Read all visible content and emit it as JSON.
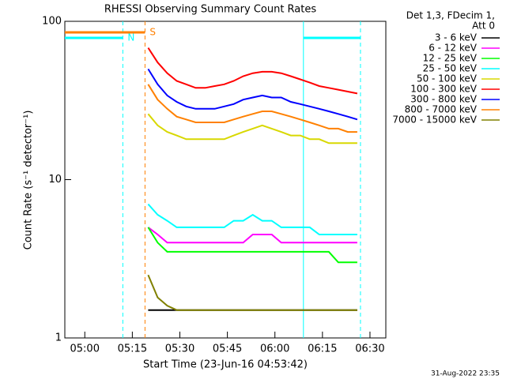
{
  "chart_data": {
    "type": "line",
    "title": "RHESSI Observing Summary Count Rates",
    "xlabel": "Start Time (23-Jun-16 04:53:42)",
    "ylabel": "Count Rate (s⁻¹ detector⁻¹)",
    "legend_title": [
      "Det 1,3, FDecim 1,",
      "Att 0"
    ],
    "footer": "31-Aug-2022 23:35",
    "log_y": true,
    "legend": "outside-right",
    "xlim": [
      "04:53:42",
      "06:35"
    ],
    "xticks": [
      "05:00",
      "05:15",
      "05:30",
      "05:45",
      "06:00",
      "06:15",
      "06:30"
    ],
    "ylim": [
      1,
      100
    ],
    "yticks": [
      1,
      10,
      100
    ],
    "intervals": [
      {
        "label": "N",
        "color": "#00ffff",
        "spans": [
          [
            "04:53:42",
            "05:12"
          ],
          [
            "06:09",
            "06:27"
          ]
        ]
      },
      {
        "label": "S",
        "color": "#ff8000",
        "spans": [
          [
            "04:53:42",
            "05:19"
          ]
        ]
      }
    ],
    "x": [
      "05:20",
      "05:23",
      "05:26",
      "05:29",
      "05:32",
      "05:35",
      "05:38",
      "05:41",
      "05:44",
      "05:47",
      "05:50",
      "05:53",
      "05:56",
      "05:59",
      "06:02",
      "06:05",
      "06:08",
      "06:11",
      "06:14",
      "06:17",
      "06:20",
      "06:23",
      "06:26"
    ],
    "series": [
      {
        "name": "3 - 6 keV",
        "color": "#000000",
        "values": [
          1.5,
          1.5,
          1.5,
          1.5,
          1.5,
          1.5,
          1.5,
          1.5,
          1.5,
          1.5,
          1.5,
          1.5,
          1.5,
          1.5,
          1.5,
          1.5,
          1.5,
          1.5,
          1.5,
          1.5,
          1.5,
          1.5,
          1.5
        ]
      },
      {
        "name": "6 - 12 keV",
        "color": "#ff00ff",
        "values": [
          5,
          4.5,
          4,
          4,
          4,
          4,
          4,
          4,
          4,
          4,
          4,
          4.5,
          4.5,
          4.5,
          4,
          4,
          4,
          4,
          4,
          4,
          4,
          4,
          4
        ]
      },
      {
        "name": "12 - 25 keV",
        "color": "#00ff00",
        "values": [
          5,
          4,
          3.5,
          3.5,
          3.5,
          3.5,
          3.5,
          3.5,
          3.5,
          3.5,
          3.5,
          3.5,
          3.5,
          3.5,
          3.5,
          3.5,
          3.5,
          3.5,
          3.5,
          3.5,
          3,
          3,
          3
        ]
      },
      {
        "name": "25 - 50 keV",
        "color": "#00ffff",
        "values": [
          7,
          6,
          5.5,
          5,
          5,
          5,
          5,
          5,
          5,
          5.5,
          5.5,
          6,
          5.5,
          5.5,
          5,
          5,
          5,
          5,
          4.5,
          4.5,
          4.5,
          4.5,
          4.5
        ]
      },
      {
        "name": "50 - 100 keV",
        "color": "#d8d800",
        "values": [
          26,
          22,
          20,
          19,
          18,
          18,
          18,
          18,
          18,
          19,
          20,
          21,
          22,
          21,
          20,
          19,
          19,
          18,
          18,
          17,
          17,
          17,
          17
        ]
      },
      {
        "name": "100 - 300 keV",
        "color": "#ff0000",
        "values": [
          68,
          55,
          47,
          42,
          40,
          38,
          38,
          39,
          40,
          42,
          45,
          47,
          48,
          48,
          47,
          45,
          43,
          41,
          39,
          38,
          37,
          36,
          35
        ]
      },
      {
        "name": "300 - 800 keV",
        "color": "#0000ff",
        "values": [
          50,
          40,
          34,
          31,
          29,
          28,
          28,
          28,
          29,
          30,
          32,
          33,
          34,
          33,
          33,
          31,
          30,
          29,
          28,
          27,
          26,
          25,
          24
        ]
      },
      {
        "name": "800 - 7000 keV",
        "color": "#ff8000",
        "values": [
          40,
          32,
          28,
          25,
          24,
          23,
          23,
          23,
          23,
          24,
          25,
          26,
          27,
          27,
          26,
          25,
          24,
          23,
          22,
          21,
          21,
          20,
          20
        ]
      },
      {
        "name": "7000 - 15000 keV",
        "color": "#808000",
        "values": [
          2.5,
          1.8,
          1.6,
          1.5,
          1.5,
          1.5,
          1.5,
          1.5,
          1.5,
          1.5,
          1.5,
          1.5,
          1.5,
          1.5,
          1.5,
          1.5,
          1.5,
          1.5,
          1.5,
          1.5,
          1.5,
          1.5,
          1.5
        ]
      }
    ]
  }
}
